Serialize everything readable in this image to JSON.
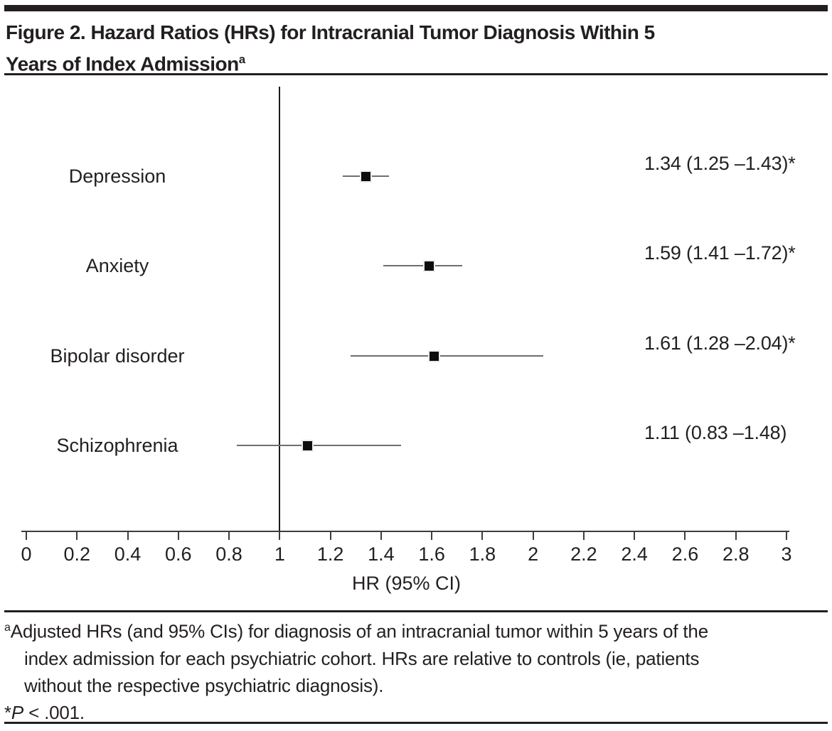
{
  "title": {
    "line1": "Figure 2. Hazard Ratios (HRs) for Intracranial Tumor Diagnosis Within 5",
    "line2": "Years of Index Admission",
    "superscript": "a"
  },
  "chart_data": {
    "type": "scatter",
    "subtype": "forest-plot",
    "title": "Figure 2. Hazard Ratios (HRs) for Intracranial Tumor Diagnosis Within 5 Years of Index Admission",
    "xlabel": "HR (95% CI)",
    "xlim": [
      0,
      3
    ],
    "x_ticks": [
      0,
      0.2,
      0.4,
      0.6,
      0.8,
      1,
      1.2,
      1.4,
      1.6,
      1.8,
      2,
      2.2,
      2.4,
      2.6,
      2.8,
      3
    ],
    "x_tick_labels": [
      "0",
      "0.2",
      "0.4",
      "0.6",
      "0.8",
      "1",
      "1.2",
      "1.4",
      "1.6",
      "1.8",
      "2",
      "2.2",
      "2.4",
      "2.6",
      "2.8",
      "3"
    ],
    "reference_line_x": 1,
    "grid": false,
    "rows": [
      {
        "label": "Depression",
        "hr": 1.34,
        "ci_low": 1.25,
        "ci_high": 1.43,
        "display": "1.34 (1.25 –1.43)*",
        "significant": true
      },
      {
        "label": "Anxiety",
        "hr": 1.59,
        "ci_low": 1.41,
        "ci_high": 1.72,
        "display": "1.59 (1.41 –1.72)*",
        "significant": true
      },
      {
        "label": "Bipolar disorder",
        "hr": 1.61,
        "ci_low": 1.28,
        "ci_high": 2.04,
        "display": "1.61 (1.28 –2.04)*",
        "significant": true
      },
      {
        "label": "Schizophrenia",
        "hr": 1.11,
        "ci_low": 0.83,
        "ci_high": 1.48,
        "display": "1.11 (0.83 –1.48)",
        "significant": false
      }
    ],
    "colors": {
      "marker": "#0d0d0d",
      "marker_halo": "#ececec",
      "ci_line": "#6e6e6e",
      "text": "#231f20",
      "axis": "#3d3d3d"
    }
  },
  "footnote": {
    "marker": "a",
    "lines": [
      "Adjusted HRs (and 95% CIs) for diagnosis of an intracranial tumor within 5 years of the",
      "index admission for each psychiatric cohort. HRs are relative to controls (ie, patients",
      "without the respective psychiatric diagnosis)."
    ],
    "significance": {
      "symbol": "*",
      "p": "P",
      "rest": " < .001."
    }
  }
}
